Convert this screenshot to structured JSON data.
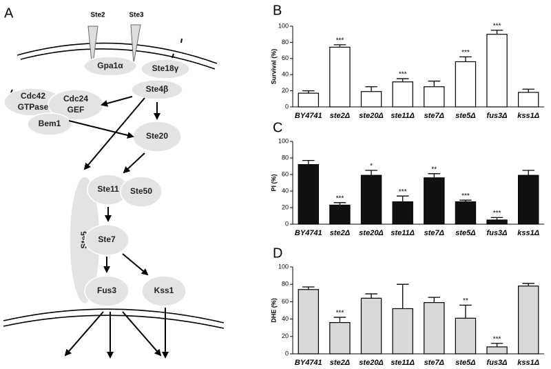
{
  "diagram": {
    "panel": "A",
    "receptors": [
      "Ste2",
      "Ste3"
    ],
    "nodes": [
      {
        "lines": [
          "Gpa1α"
        ]
      },
      {
        "lines": [
          "Ste18γ"
        ]
      },
      {
        "lines": [
          "Ste4β"
        ]
      },
      {
        "lines": [
          "Cdc42",
          "GTPase"
        ]
      },
      {
        "lines": [
          "Cdc24",
          "GEF"
        ]
      },
      {
        "lines": [
          "Bem1"
        ]
      },
      {
        "lines": [
          "Ste20"
        ]
      },
      {
        "lines": [
          "Ste5"
        ]
      },
      {
        "lines": [
          "Ste11"
        ]
      },
      {
        "lines": [
          "Ste50"
        ]
      },
      {
        "lines": [
          "Ste7"
        ]
      },
      {
        "lines": [
          "Fus3"
        ]
      },
      {
        "lines": [
          "Kss1"
        ]
      }
    ]
  },
  "chart_data": [
    {
      "type": "bar",
      "panel": "B",
      "y_label": "Survival (%)",
      "color": "#ffffff",
      "categories": [
        "BY4741",
        "ste2Δ",
        "ste20Δ",
        "ste11Δ",
        "ste7Δ",
        "ste5Δ",
        "fus3Δ",
        "kss1Δ"
      ],
      "values": [
        17,
        74,
        19,
        31,
        25,
        56,
        90,
        18
      ],
      "errors": [
        3,
        3,
        6,
        4,
        7,
        6,
        5,
        4
      ],
      "annotations": [
        null,
        "***",
        null,
        "***",
        null,
        "***",
        "***",
        null
      ],
      "ylim": [
        0,
        100
      ],
      "yticks": [
        0,
        20,
        40,
        60,
        80,
        100
      ]
    },
    {
      "type": "bar",
      "panel": "C",
      "y_label": "PI (%)",
      "color": "#111111",
      "categories": [
        "BY4741",
        "ste2Δ",
        "ste20Δ",
        "ste11Δ",
        "ste7Δ",
        "ste5Δ",
        "fus3Δ",
        "kss1Δ"
      ],
      "values": [
        72,
        23,
        59,
        27,
        56,
        27,
        5,
        59
      ],
      "errors": [
        5,
        3,
        6,
        7,
        5,
        2,
        3,
        6
      ],
      "annotations": [
        null,
        "***",
        "*",
        "***",
        "**",
        "***",
        "***",
        null
      ],
      "ylim": [
        0,
        100
      ],
      "yticks": [
        0,
        20,
        40,
        60,
        80,
        100
      ]
    },
    {
      "type": "bar",
      "panel": "D",
      "y_label": "DHE (%)",
      "color": "#d9d9d9",
      "categories": [
        "BY4741",
        "ste2Δ",
        "ste20Δ",
        "ste11Δ",
        "ste7Δ",
        "ste5Δ",
        "fus3Δ",
        "kss1Δ"
      ],
      "values": [
        74,
        36,
        64,
        52,
        59,
        41,
        8,
        78
      ],
      "errors": [
        3,
        6,
        5,
        28,
        6,
        15,
        4,
        3
      ],
      "annotations": [
        null,
        "***",
        null,
        null,
        null,
        "**",
        "***",
        null
      ],
      "ylim": [
        0,
        100
      ],
      "yticks": [
        0,
        20,
        40,
        60,
        80,
        100
      ]
    }
  ]
}
